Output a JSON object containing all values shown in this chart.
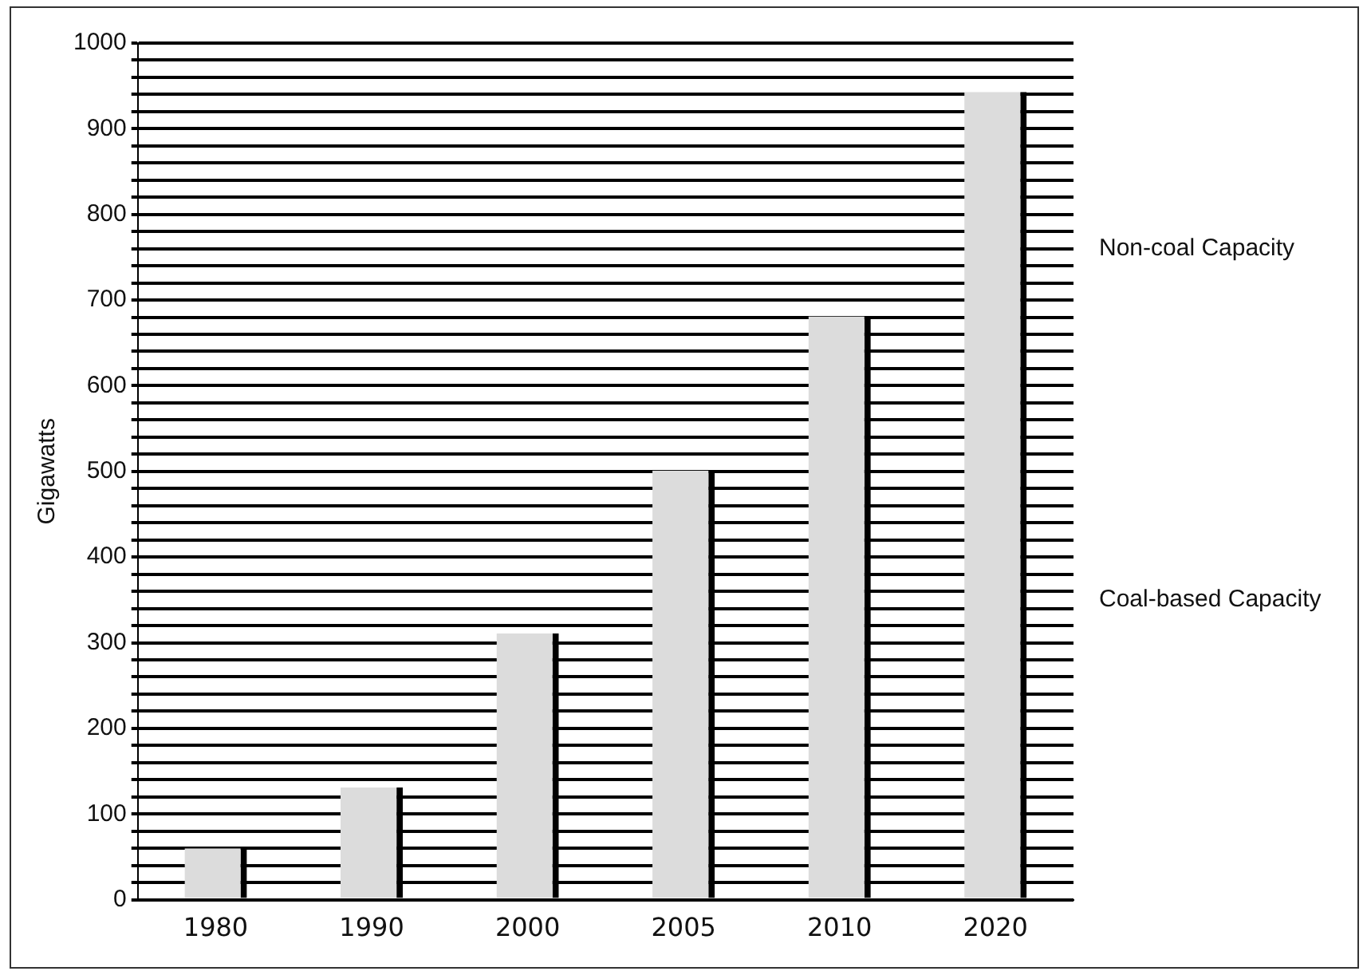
{
  "chart_data": {
    "type": "bar",
    "ylabel": "Gigawatts",
    "categories": [
      "1980",
      "1990",
      "2000",
      "2005",
      "2010",
      "2020"
    ],
    "values": [
      60,
      131,
      311,
      501,
      681,
      943
    ],
    "color": "#dcdcdc",
    "ylim": [
      0,
      1000
    ],
    "yticks": [
      0,
      {
        "value": 20,
        "label": null
      },
      {
        "value": 40,
        "label": null
      },
      {
        "value": 60,
        "label": null
      },
      {
        "value": 80,
        "label": null
      },
      100,
      {
        "value": 120,
        "label": null
      },
      {
        "value": 140,
        "label": null
      },
      {
        "value": 160,
        "label": null
      },
      {
        "value": 180,
        "label": null
      },
      200,
      {
        "value": 220,
        "label": null
      },
      {
        "value": 240,
        "label": null
      },
      {
        "value": 260,
        "label": null
      },
      {
        "value": 280,
        "label": null
      },
      300,
      {
        "value": 320,
        "label": null
      },
      {
        "value": 340,
        "label": null
      },
      {
        "value": 360,
        "label": null
      },
      {
        "value": 380,
        "label": null
      },
      400,
      {
        "value": 420,
        "label": null
      },
      {
        "value": 440,
        "label": null
      },
      {
        "value": 460,
        "label": null
      },
      {
        "value": 480,
        "label": null
      },
      500,
      {
        "value": 520,
        "label": null
      },
      {
        "value": 540,
        "label": null
      },
      {
        "value": 560,
        "label": null
      },
      {
        "value": 580,
        "label": null
      },
      600,
      {
        "value": 620,
        "label": null
      },
      {
        "value": 640,
        "label": null
      },
      {
        "value": 660,
        "label": null
      },
      {
        "value": 680,
        "label": null
      },
      700,
      {
        "value": 720,
        "label": null
      },
      {
        "value": 740,
        "label": null
      },
      {
        "value": 760,
        "label": null
      },
      {
        "value": 780,
        "label": null
      },
      800,
      {
        "value": 820,
        "label": null
      },
      {
        "value": 840,
        "label": null
      },
      {
        "value": 860,
        "label": null
      },
      {
        "value": 880,
        "label": null
      },
      900,
      {
        "value": 920,
        "label": null
      },
      {
        "value": 940,
        "label": null
      },
      {
        "value": 960,
        "label": null
      },
      {
        "value": 980,
        "label": null
      },
      1000
    ],
    "grid": "y",
    "annotations": [
      "Non-coal Capacity",
      "Coal-based Capacity"
    ]
  }
}
